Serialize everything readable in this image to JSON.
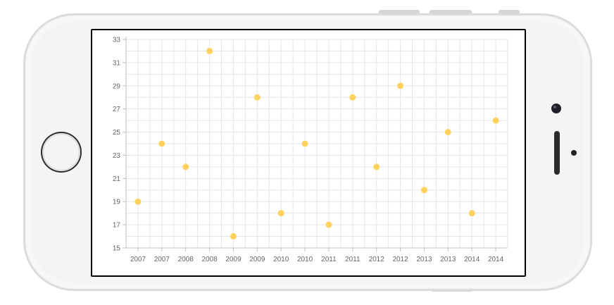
{
  "device": {
    "model": "smartphone-landscape",
    "body_color": "#f3f3f3",
    "frame_color": "#dcdcdc",
    "screen_border_color": "#000000"
  },
  "chart_data": {
    "type": "scatter",
    "title": "",
    "xlabel": "",
    "ylabel": "",
    "x_categories": [
      "2007",
      "2007",
      "2008",
      "2008",
      "2009",
      "2009",
      "2010",
      "2010",
      "2011",
      "2011",
      "2012",
      "2012",
      "2013",
      "2013",
      "2014",
      "2014"
    ],
    "values": [
      19,
      24,
      22,
      32,
      16,
      28,
      18,
      24,
      17,
      28,
      22,
      29,
      20,
      25,
      18,
      26
    ],
    "ylim": [
      15,
      33
    ],
    "y_ticks": [
      "15",
      "17",
      "19",
      "21",
      "23",
      "25",
      "27",
      "29",
      "31",
      "33"
    ],
    "grid": true,
    "legend": "none",
    "marker_color": "#ffd25e",
    "grid_color": "#e6e6e6",
    "axis_color": "#bfbfbf",
    "tick_label_color": "#666666"
  }
}
